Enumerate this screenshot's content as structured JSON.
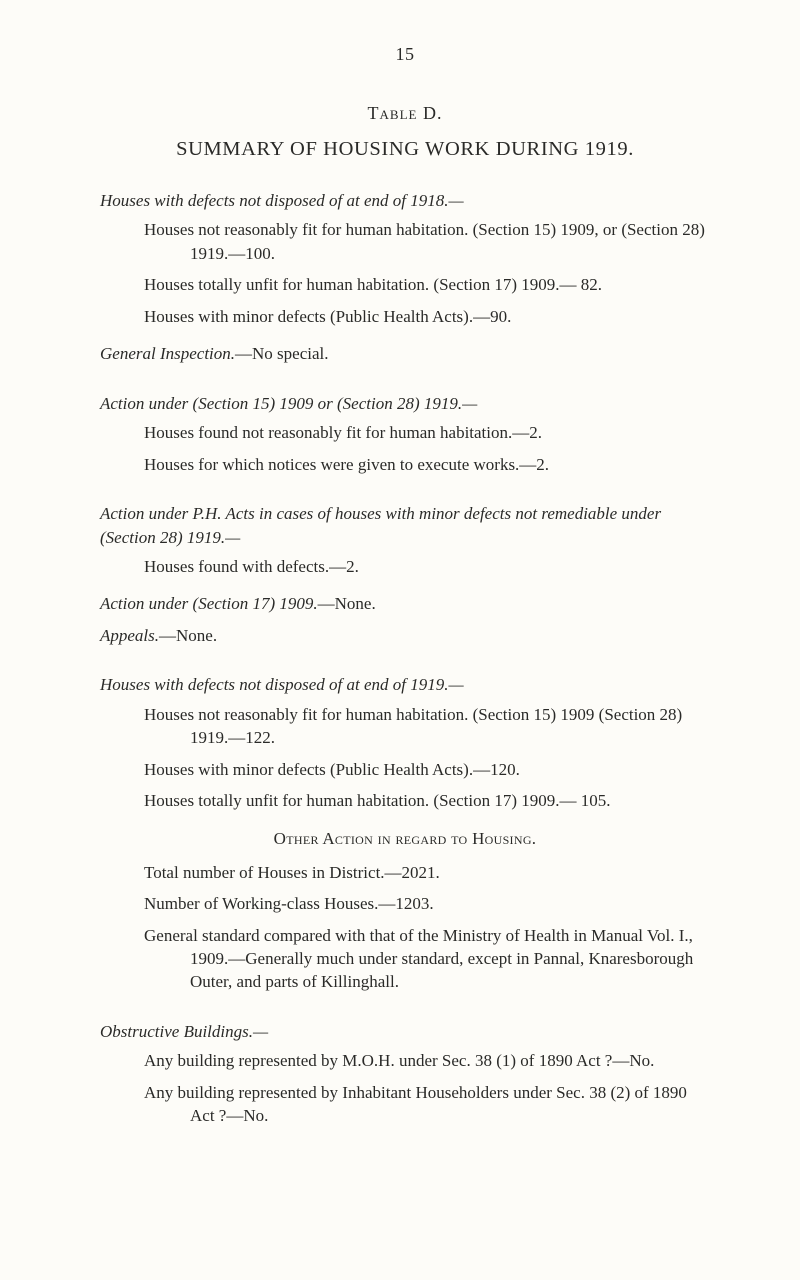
{
  "page_number": "15",
  "table_label": "Table D.",
  "title": "SUMMARY OF HOUSING WORK DURING 1919.",
  "s1": {
    "heading": "Houses with defects not disposed of at end of 1918.—",
    "p1": "Houses not reasonably fit for human habitation. (Section 15) 1909, or (Section 28) 1919.—100.",
    "p2": "Houses totally unfit for human habitation. (Section 17) 1909.— 82.",
    "p3": "Houses with minor defects (Public Health Acts).—90."
  },
  "s2": {
    "line": "General Inspection.—No special."
  },
  "s3": {
    "heading": "Action under (Section 15) 1909 or (Section 28) 1919.—",
    "p1": "Houses found not reasonably fit for human habitation.—2.",
    "p2": "Houses for which notices were given to execute works.—2."
  },
  "s4": {
    "heading": "Action under P.H. Acts in cases of houses with minor defects not remediable under (Section 28) 1919.—",
    "p1": "Houses found with defects.—2."
  },
  "s5": {
    "line": "Action under (Section 17) 1909.—None."
  },
  "s6": {
    "line": "Appeals.—None."
  },
  "s7": {
    "heading": "Houses with defects not disposed of at end of 1919.—",
    "p1": "Houses not reasonably fit for human habitation. (Section 15) 1909 (Section 28) 1919.—122.",
    "p2": "Houses with minor defects (Public Health Acts).—120.",
    "p3": "Houses totally unfit for human habitation. (Section 17) 1909.— 105."
  },
  "subhead": "Other Action in regard to Housing.",
  "s8": {
    "p1": "Total number of Houses in District.—2021.",
    "p2": "Number of Working-class Houses.—1203.",
    "p3": "General standard compared with that of the Ministry of Health in Manual Vol. I., 1909.—Generally much under standard, except in Pannal, Knaresborough Outer, and parts of Killinghall."
  },
  "s9": {
    "heading": "Obstructive Buildings.—",
    "p1": "Any building represented by M.O.H. under Sec. 38 (1) of 1890 Act ?—No.",
    "p2": "Any building represented by Inhabitant Householders under Sec. 38 (2) of 1890 Act ?—No."
  }
}
